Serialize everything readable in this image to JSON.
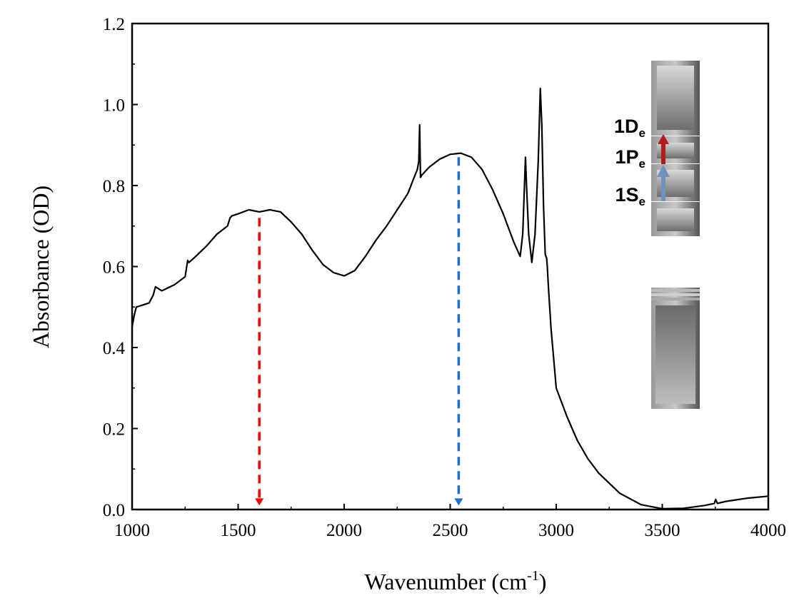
{
  "chart_data": {
    "type": "line",
    "xlabel": "Wavenumber (cm",
    "xlabel_sup": "-1",
    "xlabel_end": ")",
    "ylabel": "Absorbance (OD)",
    "xlim": [
      1000,
      4000
    ],
    "ylim": [
      0.0,
      1.2
    ],
    "xticks": [
      "1000",
      "1500",
      "2000",
      "2500",
      "3000",
      "3500",
      "4000"
    ],
    "yticks": [
      "0.0",
      "0.2",
      "0.4",
      "0.6",
      "0.8",
      "1.0",
      "1.2"
    ],
    "grid": false,
    "series": [
      {
        "color": "#000000",
        "x": [
          1000,
          1010,
          1020,
          1050,
          1080,
          1100,
          1110,
          1125,
          1140,
          1200,
          1250,
          1262,
          1268,
          1300,
          1350,
          1400,
          1450,
          1462,
          1470,
          1500,
          1550,
          1600,
          1650,
          1700,
          1750,
          1800,
          1850,
          1900,
          1950,
          2000,
          2050,
          2100,
          2150,
          2200,
          2250,
          2300,
          2330,
          2345,
          2352,
          2356,
          2360,
          2365,
          2400,
          2450,
          2500,
          2550,
          2600,
          2650,
          2700,
          2750,
          2800,
          2830,
          2842,
          2850,
          2855,
          2860,
          2870,
          2885,
          2900,
          2915,
          2925,
          2932,
          2940,
          2948,
          2955,
          2958,
          2962,
          2975,
          3000,
          3050,
          3100,
          3150,
          3200,
          3300,
          3400,
          3500,
          3600,
          3700,
          3745,
          3752,
          3760,
          3800,
          3900,
          4000
        ],
        "y": [
          0.45,
          0.48,
          0.5,
          0.505,
          0.51,
          0.53,
          0.55,
          0.545,
          0.54,
          0.555,
          0.575,
          0.615,
          0.61,
          0.625,
          0.65,
          0.68,
          0.7,
          0.72,
          0.725,
          0.73,
          0.74,
          0.735,
          0.74,
          0.735,
          0.71,
          0.68,
          0.64,
          0.605,
          0.585,
          0.577,
          0.59,
          0.625,
          0.665,
          0.7,
          0.74,
          0.78,
          0.82,
          0.84,
          0.86,
          0.95,
          0.82,
          0.825,
          0.845,
          0.865,
          0.877,
          0.88,
          0.87,
          0.84,
          0.79,
          0.73,
          0.66,
          0.625,
          0.68,
          0.8,
          0.87,
          0.8,
          0.68,
          0.61,
          0.68,
          0.86,
          1.04,
          0.95,
          0.75,
          0.63,
          0.62,
          0.6,
          0.56,
          0.45,
          0.3,
          0.23,
          0.17,
          0.125,
          0.09,
          0.04,
          0.012,
          0.002,
          0.003,
          0.01,
          0.015,
          0.025,
          0.015,
          0.02,
          0.028,
          0.033
        ]
      }
    ],
    "annotations": [
      {
        "type": "dashed-arrow",
        "x": 1600,
        "from_y": 0.72,
        "to_y": 0.01,
        "color": "#ff0000"
      },
      {
        "type": "dashed-arrow",
        "x": 2540,
        "from_y": 0.87,
        "to_y": 0.01,
        "color": "#1f6fd0"
      }
    ]
  },
  "inset": {
    "levels": [
      {
        "main": "1D",
        "sub": "e"
      },
      {
        "main": "1P",
        "sub": "e"
      },
      {
        "main": "1S",
        "sub": "e"
      }
    ],
    "arrow_colors": {
      "upper": "#b01c1c",
      "lower": "#6f93c0"
    }
  }
}
